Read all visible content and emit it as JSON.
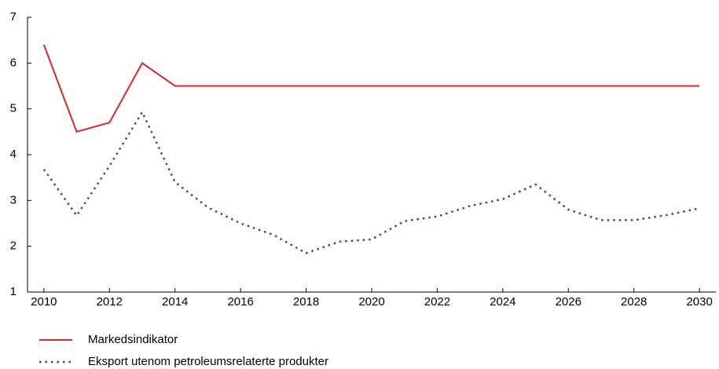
{
  "chart_data": {
    "type": "line",
    "x": [
      2010,
      2011,
      2012,
      2013,
      2014,
      2015,
      2016,
      2017,
      2018,
      2019,
      2020,
      2021,
      2022,
      2023,
      2024,
      2025,
      2026,
      2027,
      2028,
      2029,
      2030
    ],
    "series": [
      {
        "name": "Markedsindikator",
        "color": "#e3242b",
        "style": "solid",
        "values": [
          6.4,
          4.5,
          4.7,
          6.0,
          5.5,
          5.5,
          5.5,
          5.5,
          5.5,
          5.5,
          5.5,
          5.5,
          5.5,
          5.5,
          5.5,
          5.5,
          5.5,
          5.5,
          5.5,
          5.5,
          5.5
        ]
      },
      {
        "name": "Eksport utenom petroleumsrelaterte produkter",
        "color": "#2e4a9e",
        "style": "dotted",
        "values": [
          3.68,
          2.67,
          3.75,
          4.93,
          3.4,
          2.85,
          2.5,
          2.25,
          1.85,
          2.1,
          2.15,
          2.55,
          2.65,
          2.88,
          3.03,
          3.35,
          2.8,
          2.57,
          2.57,
          2.68,
          2.83
        ]
      }
    ],
    "xlim": [
      2009.5,
      2030.5
    ],
    "xticks": [
      2010,
      2012,
      2014,
      2016,
      2018,
      2020,
      2022,
      2024,
      2026,
      2028,
      2030
    ],
    "ylim": [
      1,
      7
    ],
    "yticks": [
      1,
      2,
      3,
      4,
      5,
      6,
      7
    ],
    "grid": false
  }
}
